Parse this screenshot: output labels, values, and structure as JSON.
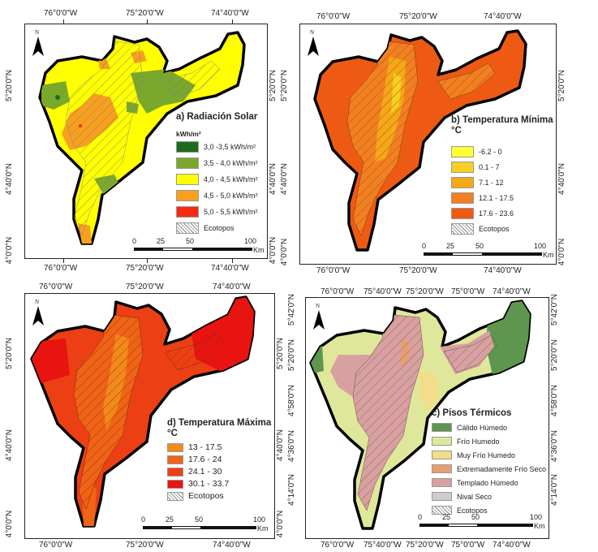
{
  "panels": {
    "a": {
      "title": "a) Radiación Solar",
      "subtitle": "kWh/m²",
      "legend": [
        {
          "label": "3,0 -3,5 kWh/m²",
          "color": "#1e6b1e"
        },
        {
          "label": "3,5 - 4,0 kWh/m²",
          "color": "#7aa82c"
        },
        {
          "label": "4,0 - 4,5 kWh/m²",
          "color": "#ffff00"
        },
        {
          "label": "4,5 - 5,0 kWh/m²",
          "color": "#f7a020"
        },
        {
          "label": "5,0 - 5,5 kWh/m²",
          "color": "#f52a10"
        },
        {
          "label": "Ecotopos",
          "color": "hatch"
        }
      ],
      "top_ticks": [
        "76°0'0\"W",
        "75°20'0\"W",
        "74°40'0\"W"
      ],
      "bottom_ticks": [
        "76°0'0\"W",
        "75°20'0\"W",
        "74°40'0\"W"
      ],
      "left_ticks": [
        "5°20'0\"N",
        "4°40'0\"N",
        "4°0'0\"N"
      ],
      "right_ticks": [
        "5°20'0\"N",
        "4°40'0\"N",
        "4°0'0\"N"
      ]
    },
    "b": {
      "title": "b) Temperatura Mínima",
      "title2": "°C",
      "legend": [
        {
          "label": "-6.2 - 0",
          "color": "#ffff33"
        },
        {
          "label": "0.1 - 7",
          "color": "#f8d020"
        },
        {
          "label": "7.1 - 12",
          "color": "#f5a818"
        },
        {
          "label": "12.1 - 17.5",
          "color": "#f28020"
        },
        {
          "label": "17.6 - 23.6",
          "color": "#ee5a14"
        },
        {
          "label": "Ecotopos",
          "color": "hatch"
        }
      ],
      "top_ticks": [
        "76°0'0\"W",
        "75°20'0\"W",
        "74°40'0\"W"
      ],
      "bottom_ticks": [
        "76°0'0\"W",
        "75°20'0\"W",
        "74°40'0\"W"
      ],
      "left_ticks": [
        "5°20'0\"N",
        "4°40'0\"N",
        "4°0'0\"N"
      ],
      "right_ticks": [
        "5°20'0\"N",
        "4°40'0\"N",
        "4°0'0\"N"
      ]
    },
    "d": {
      "title": "d) Temperatura Máxima",
      "title2": "°C",
      "legend": [
        {
          "label": "13 - 17.5",
          "color": "#f28a1a"
        },
        {
          "label": "17.6 - 24",
          "color": "#ef6416"
        },
        {
          "label": "24.1 - 30",
          "color": "#ec4014"
        },
        {
          "label": "30.1 - 33.7",
          "color": "#e81410"
        },
        {
          "label": "Ecotopos",
          "color": "hatch"
        }
      ],
      "top_ticks": [
        "76°0'0\"W",
        "75°20'0\"W",
        "74°40'0\"W"
      ],
      "bottom_ticks": [
        "76°0'0\"W",
        "75°20'0\"W",
        "74°40'0\"W"
      ],
      "left_ticks": [
        "5°20'0\"N",
        "4°40'0\"N",
        "4°0'0\"N"
      ],
      "right_ticks": [
        "5°20'0\"N",
        "4°40'0\"N",
        "4°0'0\"N"
      ]
    },
    "c": {
      "title": "c) Pisos Térmicos",
      "legend": [
        {
          "label": "Cálido Húmedo",
          "color": "#5e9650"
        },
        {
          "label": "Frío Humedo",
          "color": "#dfe89a"
        },
        {
          "label": "Muy Frío Humedo",
          "color": "#f3dc8a"
        },
        {
          "label": "Extremadamente Frío Seco",
          "color": "#e6a070"
        },
        {
          "label": "Templado Húmedo",
          "color": "#d8a0a0"
        },
        {
          "label": "Nival Seco",
          "color": "#cccccc"
        },
        {
          "label": "Ecotopos",
          "color": "hatch"
        }
      ],
      "top_ticks": [
        "76°0'0\"W",
        "75°40'0\"W",
        "75°20'0\"W",
        "75°0'0\"W",
        "74°40'0\"W"
      ],
      "bottom_ticks": [
        "76°0'0\"W",
        "75°40'0\"W",
        "75°20'0\"W",
        "75°0'0\"W",
        "74°40'0\"W"
      ],
      "left_ticks": [
        "5°42'0\"N",
        "5°20'0\"N",
        "4°58'0\"N",
        "4°36'0\"N",
        "4°14'0\"N"
      ],
      "right_ticks": [
        "5°42'0\"N",
        "5°20'0\"N",
        "4°58'0\"N",
        "4°36'0\"N",
        "4°14'0\"N"
      ]
    }
  },
  "scale": {
    "labels": [
      "0",
      "25",
      "50",
      "100"
    ],
    "unit": "Km"
  },
  "north_label": "N",
  "map_colors": {
    "a": {
      "base": "#ffff00",
      "zones": [
        "#7aa82c",
        "#f7a020",
        "#1e6b1e",
        "#f52a10"
      ]
    },
    "b": {
      "base": "#ee5a14",
      "zones": [
        "#f28020",
        "#f5a818",
        "#f8d020"
      ]
    },
    "d": {
      "base": "#ec4014",
      "zones": [
        "#e81410",
        "#ef6416",
        "#f28a1a"
      ]
    },
    "c": {
      "base": "#dfe89a",
      "zones": [
        "#5e9650",
        "#d8a0a0",
        "#f3dc8a",
        "#e6a070",
        "#cccccc"
      ]
    }
  }
}
